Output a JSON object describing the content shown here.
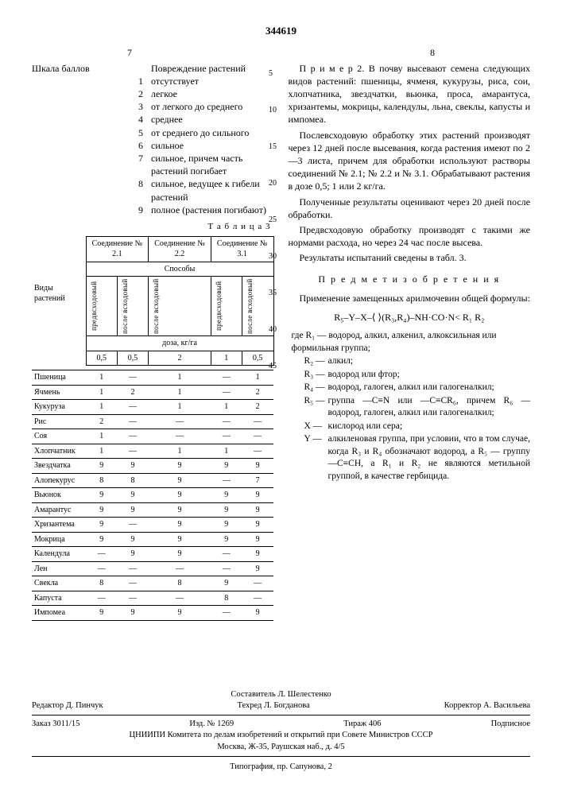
{
  "doc_number": "344619",
  "page_left": "7",
  "page_right": "8",
  "scale": {
    "header": "Шкала баллов",
    "col2_header": "Повреждение растений",
    "rows": [
      {
        "n": "1",
        "d": "отсутствует"
      },
      {
        "n": "2",
        "d": "легкое"
      },
      {
        "n": "3",
        "d": "от легкого до среднего"
      },
      {
        "n": "4",
        "d": "среднее"
      },
      {
        "n": "5",
        "d": "от среднего до сильного"
      },
      {
        "n": "6",
        "d": "сильное"
      },
      {
        "n": "7",
        "d": "сильное, причем часть растений погибает"
      },
      {
        "n": "8",
        "d": "сильное, ведущее к гибели растений"
      },
      {
        "n": "9",
        "d": "полное (растения погибают)"
      }
    ]
  },
  "table3": {
    "label": "Т а б л и ц а  3",
    "h_compounds": [
      "Соединение № 2.1",
      "Соединение № 2.2",
      "Соединение № 3.1"
    ],
    "h_methods": "Способы",
    "h_kinds": "Виды растений",
    "h_dose": "доза, кг/га",
    "method_cols": [
      "предвсходовый",
      "после всходовый",
      "после всходовый",
      "предвсходовый",
      "после всходовый"
    ],
    "dose_row": [
      "0,5",
      "0,5",
      "2",
      "1",
      "0,5"
    ],
    "plants": [
      "Пшеница",
      "Ячмень",
      "Кукуруза",
      "Рис",
      "Соя",
      "Хлопчатник",
      "Звездчатка",
      "Алопекурус",
      "Вьюнок",
      "Амарантус",
      "Хризантема",
      "Мокрица",
      "Календула",
      "Лен",
      "Свекла",
      "Капуста",
      "Импомеа"
    ],
    "data": [
      [
        "1",
        "—",
        "1",
        "—",
        "1"
      ],
      [
        "1",
        "2",
        "1",
        "—",
        "2"
      ],
      [
        "1",
        "—",
        "1",
        "1",
        "2"
      ],
      [
        "2",
        "—",
        "—",
        "—",
        "—"
      ],
      [
        "1",
        "—",
        "—",
        "—",
        "—"
      ],
      [
        "1",
        "—",
        "1",
        "1",
        "—"
      ],
      [
        "9",
        "9",
        "9",
        "9",
        "9"
      ],
      [
        "8",
        "8",
        "9",
        "—",
        "7"
      ],
      [
        "9",
        "9",
        "9",
        "9",
        "9"
      ],
      [
        "9",
        "9",
        "9",
        "9",
        "9"
      ],
      [
        "9",
        "—",
        "9",
        "9",
        "9"
      ],
      [
        "9",
        "9",
        "9",
        "9",
        "9"
      ],
      [
        "—",
        "9",
        "9",
        "—",
        "9"
      ],
      [
        "—",
        "—",
        "—",
        "—",
        "9"
      ],
      [
        "8",
        "—",
        "8",
        "9",
        "—"
      ],
      [
        "—",
        "—",
        "—",
        "8",
        "—"
      ],
      [
        "9",
        "9",
        "9",
        "—",
        "9"
      ]
    ]
  },
  "right": {
    "p1_label": "П р и м е р 2.",
    "p1": "В почву высевают семена следующих видов растений: пшеницы, ячменя, кукурузы, риса, сои, хлопчатника, звездчатки, вьюнка, проса, амарантуса, хризантемы, мокрицы, календулы, льна, свеклы, капусты и импомеа.",
    "p2": "Послевсходовую обработку этих растений производят через 12 дней после высевания, когда растения имеют по 2—3 листа, причем для обработки используют растворы соединений № 2.1; № 2.2 и № 3.1. Обрабатывают растения в дозе 0,5; 1 или 2 кг/га.",
    "p3": "Полученные результаты оценивают через 20 дней после обработки.",
    "p4": "Предвсходовую обработку производят с такими же нормами расхода, но через 24 час после высева.",
    "p5": "Результаты испытаний сведены в табл. 3.",
    "subject": "П р е д м е т  и з о б р е т е н и я",
    "app": "Применение замещенных арилмочевин общей формулы:",
    "formula": "R₅–Y–X–⟨ ⟩(R₃,R₄)–NH·CO·N< R₁ R₂",
    "where": "где R₁ — водород, алкил, алкенил, алкоксильная или формильная группа;",
    "defs": [
      {
        "s": "R₂ —",
        "t": "алкил;"
      },
      {
        "s": "R₃ —",
        "t": "водород или фтор;"
      },
      {
        "s": "R₄ —",
        "t": "водород, галоген, алкил или галогеналкил;"
      },
      {
        "s": "R₅ —",
        "t": "группа —C≡N или —C≡CR₆, причем R₆ — водород, галоген, алкил или галогеналкил;"
      },
      {
        "s": "X —",
        "t": "кислород или сера;"
      },
      {
        "s": "Y —",
        "t": "алкиленовая группа, при условии, что в том случае, когда R₃ и R₄ обозначают водород, а R₅ — группу —C≡CH, а R₁ и R₂ не являются метильной группой, в качестве гербицида."
      }
    ]
  },
  "line_marks": [
    "5",
    "10",
    "15",
    "20",
    "25",
    "30",
    "35",
    "40",
    "45"
  ],
  "footer": {
    "comp": "Составитель Л. Шелестенко",
    "ed": "Редактор Д. Пинчук",
    "tech": "Техред Л. Богданова",
    "corr": "Корректор А. Васильева",
    "order": "Заказ 3011/15",
    "izd": "Изд. № 1269",
    "tir": "Тираж 406",
    "sub": "Подписное",
    "org1": "ЦНИИПИ Комитета по делам изобретений и открытий при Совете Министров СССР",
    "org2": "Москва, Ж-35, Раушская наб., д. 4/5",
    "typo": "Типография, пр. Сапунова, 2"
  },
  "layout": {
    "ln_top_start": 86,
    "ln_step": 46
  }
}
